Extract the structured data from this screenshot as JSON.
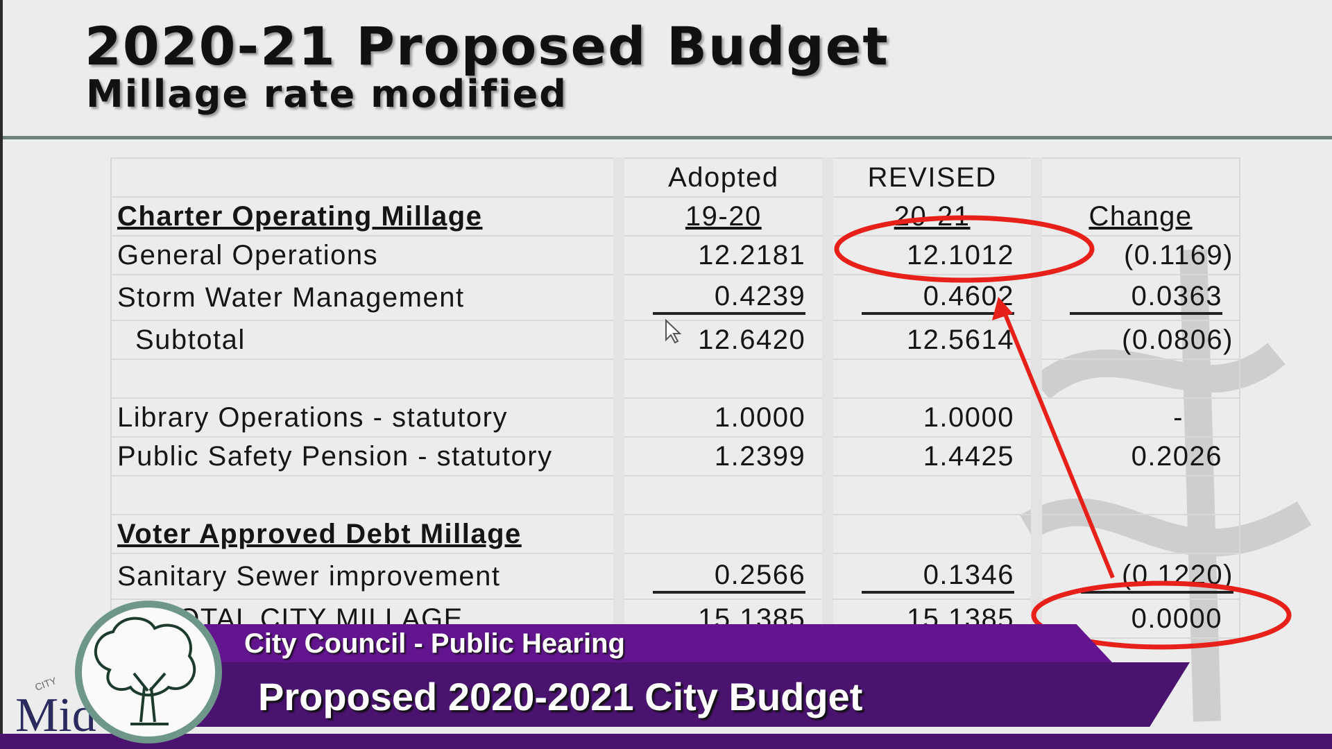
{
  "slide": {
    "title": "2020-21 Proposed Budget",
    "subtitle": "Millage rate modified"
  },
  "table": {
    "headers_top": [
      "",
      "Adopted",
      "REVISED",
      ""
    ],
    "headers": [
      "Charter Operating Millage",
      "19-20",
      "20-21",
      "Change"
    ],
    "rows": [
      {
        "label": "General Operations",
        "adopted": "12.2181",
        "revised": "12.1012",
        "change": "(0.1169)"
      },
      {
        "label": "Storm Water Management",
        "adopted": "0.4239",
        "revised": "0.4602",
        "change": "0.0363"
      },
      {
        "label": "Subtotal",
        "adopted": "12.6420",
        "revised": "12.5614",
        "change": "(0.0806)"
      },
      {
        "label": "Library Operations - statutory",
        "adopted": "1.0000",
        "revised": "1.0000",
        "change": "-"
      },
      {
        "label": "Public Safety Pension - statutory",
        "adopted": "1.2399",
        "revised": "1.4425",
        "change": "0.2026"
      }
    ],
    "section2": "Voter Approved Debt Millage",
    "rows2": [
      {
        "label": "Sanitary Sewer improvement",
        "adopted": "0.2566",
        "revised": "0.1346",
        "change": "(0.1220)"
      },
      {
        "label": "TOTAL CITY MILLAGE",
        "adopted": "15.1385",
        "revised": "15.1385",
        "change": "0.0000"
      }
    ]
  },
  "annotations": {
    "color": "#e8201a"
  },
  "lower_third": {
    "line1": "City Council - Public Hearing",
    "line2": "Proposed 2020-2021 City Budget",
    "color_top": "#63148f",
    "color_bottom": "#4a1370"
  },
  "logo": {
    "city": "CITY",
    "name": "Midland"
  }
}
